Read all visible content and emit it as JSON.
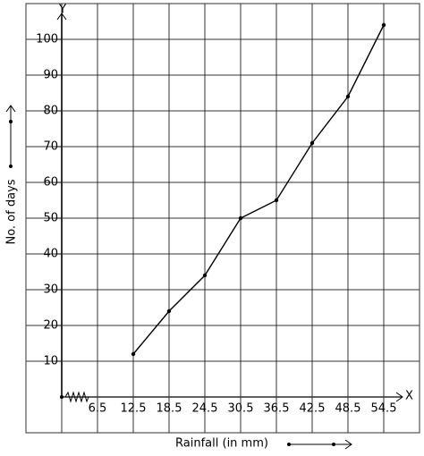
{
  "chart_data": {
    "type": "line",
    "x_axis_name": "X",
    "y_axis_name": "Y",
    "x_label": "Rainfall (in mm)",
    "y_label": "No. of days",
    "x": [
      12.5,
      18.5,
      24.5,
      30.5,
      36.5,
      42.5,
      48.5,
      54.5
    ],
    "values": [
      12,
      24,
      34,
      50,
      55,
      71,
      84,
      104
    ],
    "color": "#000000",
    "xlim": [
      -5.5,
      60.5
    ],
    "xticks": [
      6.5,
      12.5,
      18.5,
      24.5,
      30.5,
      36.5,
      42.5,
      48.5,
      54.5
    ],
    "ylim": [
      -10,
      110
    ],
    "yticks": [
      10,
      20,
      30,
      40,
      50,
      60,
      70,
      80,
      90,
      100
    ],
    "grid": true
  }
}
